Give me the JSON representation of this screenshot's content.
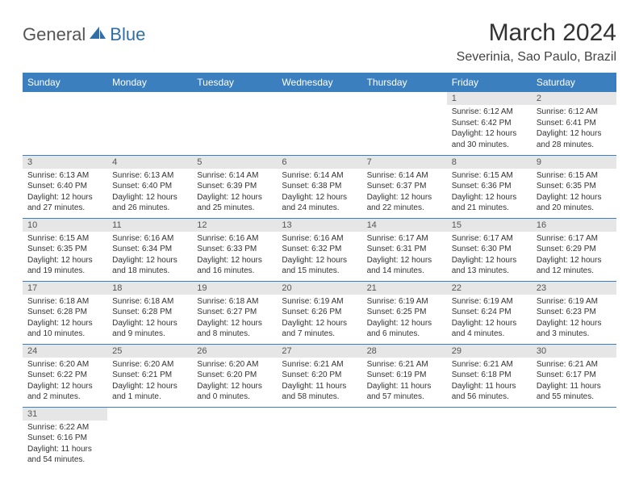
{
  "logo": {
    "text1": "General",
    "text2": "Blue"
  },
  "title": "March 2024",
  "location": "Severinia, Sao Paulo, Brazil",
  "colors": {
    "header_bg": "#3b7fbf",
    "header_fg": "#ffffff",
    "daynum_bg": "#e6e6e6",
    "row_border": "#3b7fbf",
    "logo_blue": "#2f6fa8",
    "text": "#333333"
  },
  "fonts": {
    "title_size": 30,
    "location_size": 16,
    "th_size": 12,
    "daynum_size": 11,
    "body_size": 10
  },
  "weekdays": [
    "Sunday",
    "Monday",
    "Tuesday",
    "Wednesday",
    "Thursday",
    "Friday",
    "Saturday"
  ],
  "weeks": [
    [
      null,
      null,
      null,
      null,
      null,
      {
        "n": "1",
        "sr": "Sunrise: 6:12 AM",
        "ss": "Sunset: 6:42 PM",
        "dl": "Daylight: 12 hours and 30 minutes."
      },
      {
        "n": "2",
        "sr": "Sunrise: 6:12 AM",
        "ss": "Sunset: 6:41 PM",
        "dl": "Daylight: 12 hours and 28 minutes."
      }
    ],
    [
      {
        "n": "3",
        "sr": "Sunrise: 6:13 AM",
        "ss": "Sunset: 6:40 PM",
        "dl": "Daylight: 12 hours and 27 minutes."
      },
      {
        "n": "4",
        "sr": "Sunrise: 6:13 AM",
        "ss": "Sunset: 6:40 PM",
        "dl": "Daylight: 12 hours and 26 minutes."
      },
      {
        "n": "5",
        "sr": "Sunrise: 6:14 AM",
        "ss": "Sunset: 6:39 PM",
        "dl": "Daylight: 12 hours and 25 minutes."
      },
      {
        "n": "6",
        "sr": "Sunrise: 6:14 AM",
        "ss": "Sunset: 6:38 PM",
        "dl": "Daylight: 12 hours and 24 minutes."
      },
      {
        "n": "7",
        "sr": "Sunrise: 6:14 AM",
        "ss": "Sunset: 6:37 PM",
        "dl": "Daylight: 12 hours and 22 minutes."
      },
      {
        "n": "8",
        "sr": "Sunrise: 6:15 AM",
        "ss": "Sunset: 6:36 PM",
        "dl": "Daylight: 12 hours and 21 minutes."
      },
      {
        "n": "9",
        "sr": "Sunrise: 6:15 AM",
        "ss": "Sunset: 6:35 PM",
        "dl": "Daylight: 12 hours and 20 minutes."
      }
    ],
    [
      {
        "n": "10",
        "sr": "Sunrise: 6:15 AM",
        "ss": "Sunset: 6:35 PM",
        "dl": "Daylight: 12 hours and 19 minutes."
      },
      {
        "n": "11",
        "sr": "Sunrise: 6:16 AM",
        "ss": "Sunset: 6:34 PM",
        "dl": "Daylight: 12 hours and 18 minutes."
      },
      {
        "n": "12",
        "sr": "Sunrise: 6:16 AM",
        "ss": "Sunset: 6:33 PM",
        "dl": "Daylight: 12 hours and 16 minutes."
      },
      {
        "n": "13",
        "sr": "Sunrise: 6:16 AM",
        "ss": "Sunset: 6:32 PM",
        "dl": "Daylight: 12 hours and 15 minutes."
      },
      {
        "n": "14",
        "sr": "Sunrise: 6:17 AM",
        "ss": "Sunset: 6:31 PM",
        "dl": "Daylight: 12 hours and 14 minutes."
      },
      {
        "n": "15",
        "sr": "Sunrise: 6:17 AM",
        "ss": "Sunset: 6:30 PM",
        "dl": "Daylight: 12 hours and 13 minutes."
      },
      {
        "n": "16",
        "sr": "Sunrise: 6:17 AM",
        "ss": "Sunset: 6:29 PM",
        "dl": "Daylight: 12 hours and 12 minutes."
      }
    ],
    [
      {
        "n": "17",
        "sr": "Sunrise: 6:18 AM",
        "ss": "Sunset: 6:28 PM",
        "dl": "Daylight: 12 hours and 10 minutes."
      },
      {
        "n": "18",
        "sr": "Sunrise: 6:18 AM",
        "ss": "Sunset: 6:28 PM",
        "dl": "Daylight: 12 hours and 9 minutes."
      },
      {
        "n": "19",
        "sr": "Sunrise: 6:18 AM",
        "ss": "Sunset: 6:27 PM",
        "dl": "Daylight: 12 hours and 8 minutes."
      },
      {
        "n": "20",
        "sr": "Sunrise: 6:19 AM",
        "ss": "Sunset: 6:26 PM",
        "dl": "Daylight: 12 hours and 7 minutes."
      },
      {
        "n": "21",
        "sr": "Sunrise: 6:19 AM",
        "ss": "Sunset: 6:25 PM",
        "dl": "Daylight: 12 hours and 6 minutes."
      },
      {
        "n": "22",
        "sr": "Sunrise: 6:19 AM",
        "ss": "Sunset: 6:24 PM",
        "dl": "Daylight: 12 hours and 4 minutes."
      },
      {
        "n": "23",
        "sr": "Sunrise: 6:19 AM",
        "ss": "Sunset: 6:23 PM",
        "dl": "Daylight: 12 hours and 3 minutes."
      }
    ],
    [
      {
        "n": "24",
        "sr": "Sunrise: 6:20 AM",
        "ss": "Sunset: 6:22 PM",
        "dl": "Daylight: 12 hours and 2 minutes."
      },
      {
        "n": "25",
        "sr": "Sunrise: 6:20 AM",
        "ss": "Sunset: 6:21 PM",
        "dl": "Daylight: 12 hours and 1 minute."
      },
      {
        "n": "26",
        "sr": "Sunrise: 6:20 AM",
        "ss": "Sunset: 6:20 PM",
        "dl": "Daylight: 12 hours and 0 minutes."
      },
      {
        "n": "27",
        "sr": "Sunrise: 6:21 AM",
        "ss": "Sunset: 6:20 PM",
        "dl": "Daylight: 11 hours and 58 minutes."
      },
      {
        "n": "28",
        "sr": "Sunrise: 6:21 AM",
        "ss": "Sunset: 6:19 PM",
        "dl": "Daylight: 11 hours and 57 minutes."
      },
      {
        "n": "29",
        "sr": "Sunrise: 6:21 AM",
        "ss": "Sunset: 6:18 PM",
        "dl": "Daylight: 11 hours and 56 minutes."
      },
      {
        "n": "30",
        "sr": "Sunrise: 6:21 AM",
        "ss": "Sunset: 6:17 PM",
        "dl": "Daylight: 11 hours and 55 minutes."
      }
    ],
    [
      {
        "n": "31",
        "sr": "Sunrise: 6:22 AM",
        "ss": "Sunset: 6:16 PM",
        "dl": "Daylight: 11 hours and 54 minutes."
      },
      null,
      null,
      null,
      null,
      null,
      null
    ]
  ]
}
